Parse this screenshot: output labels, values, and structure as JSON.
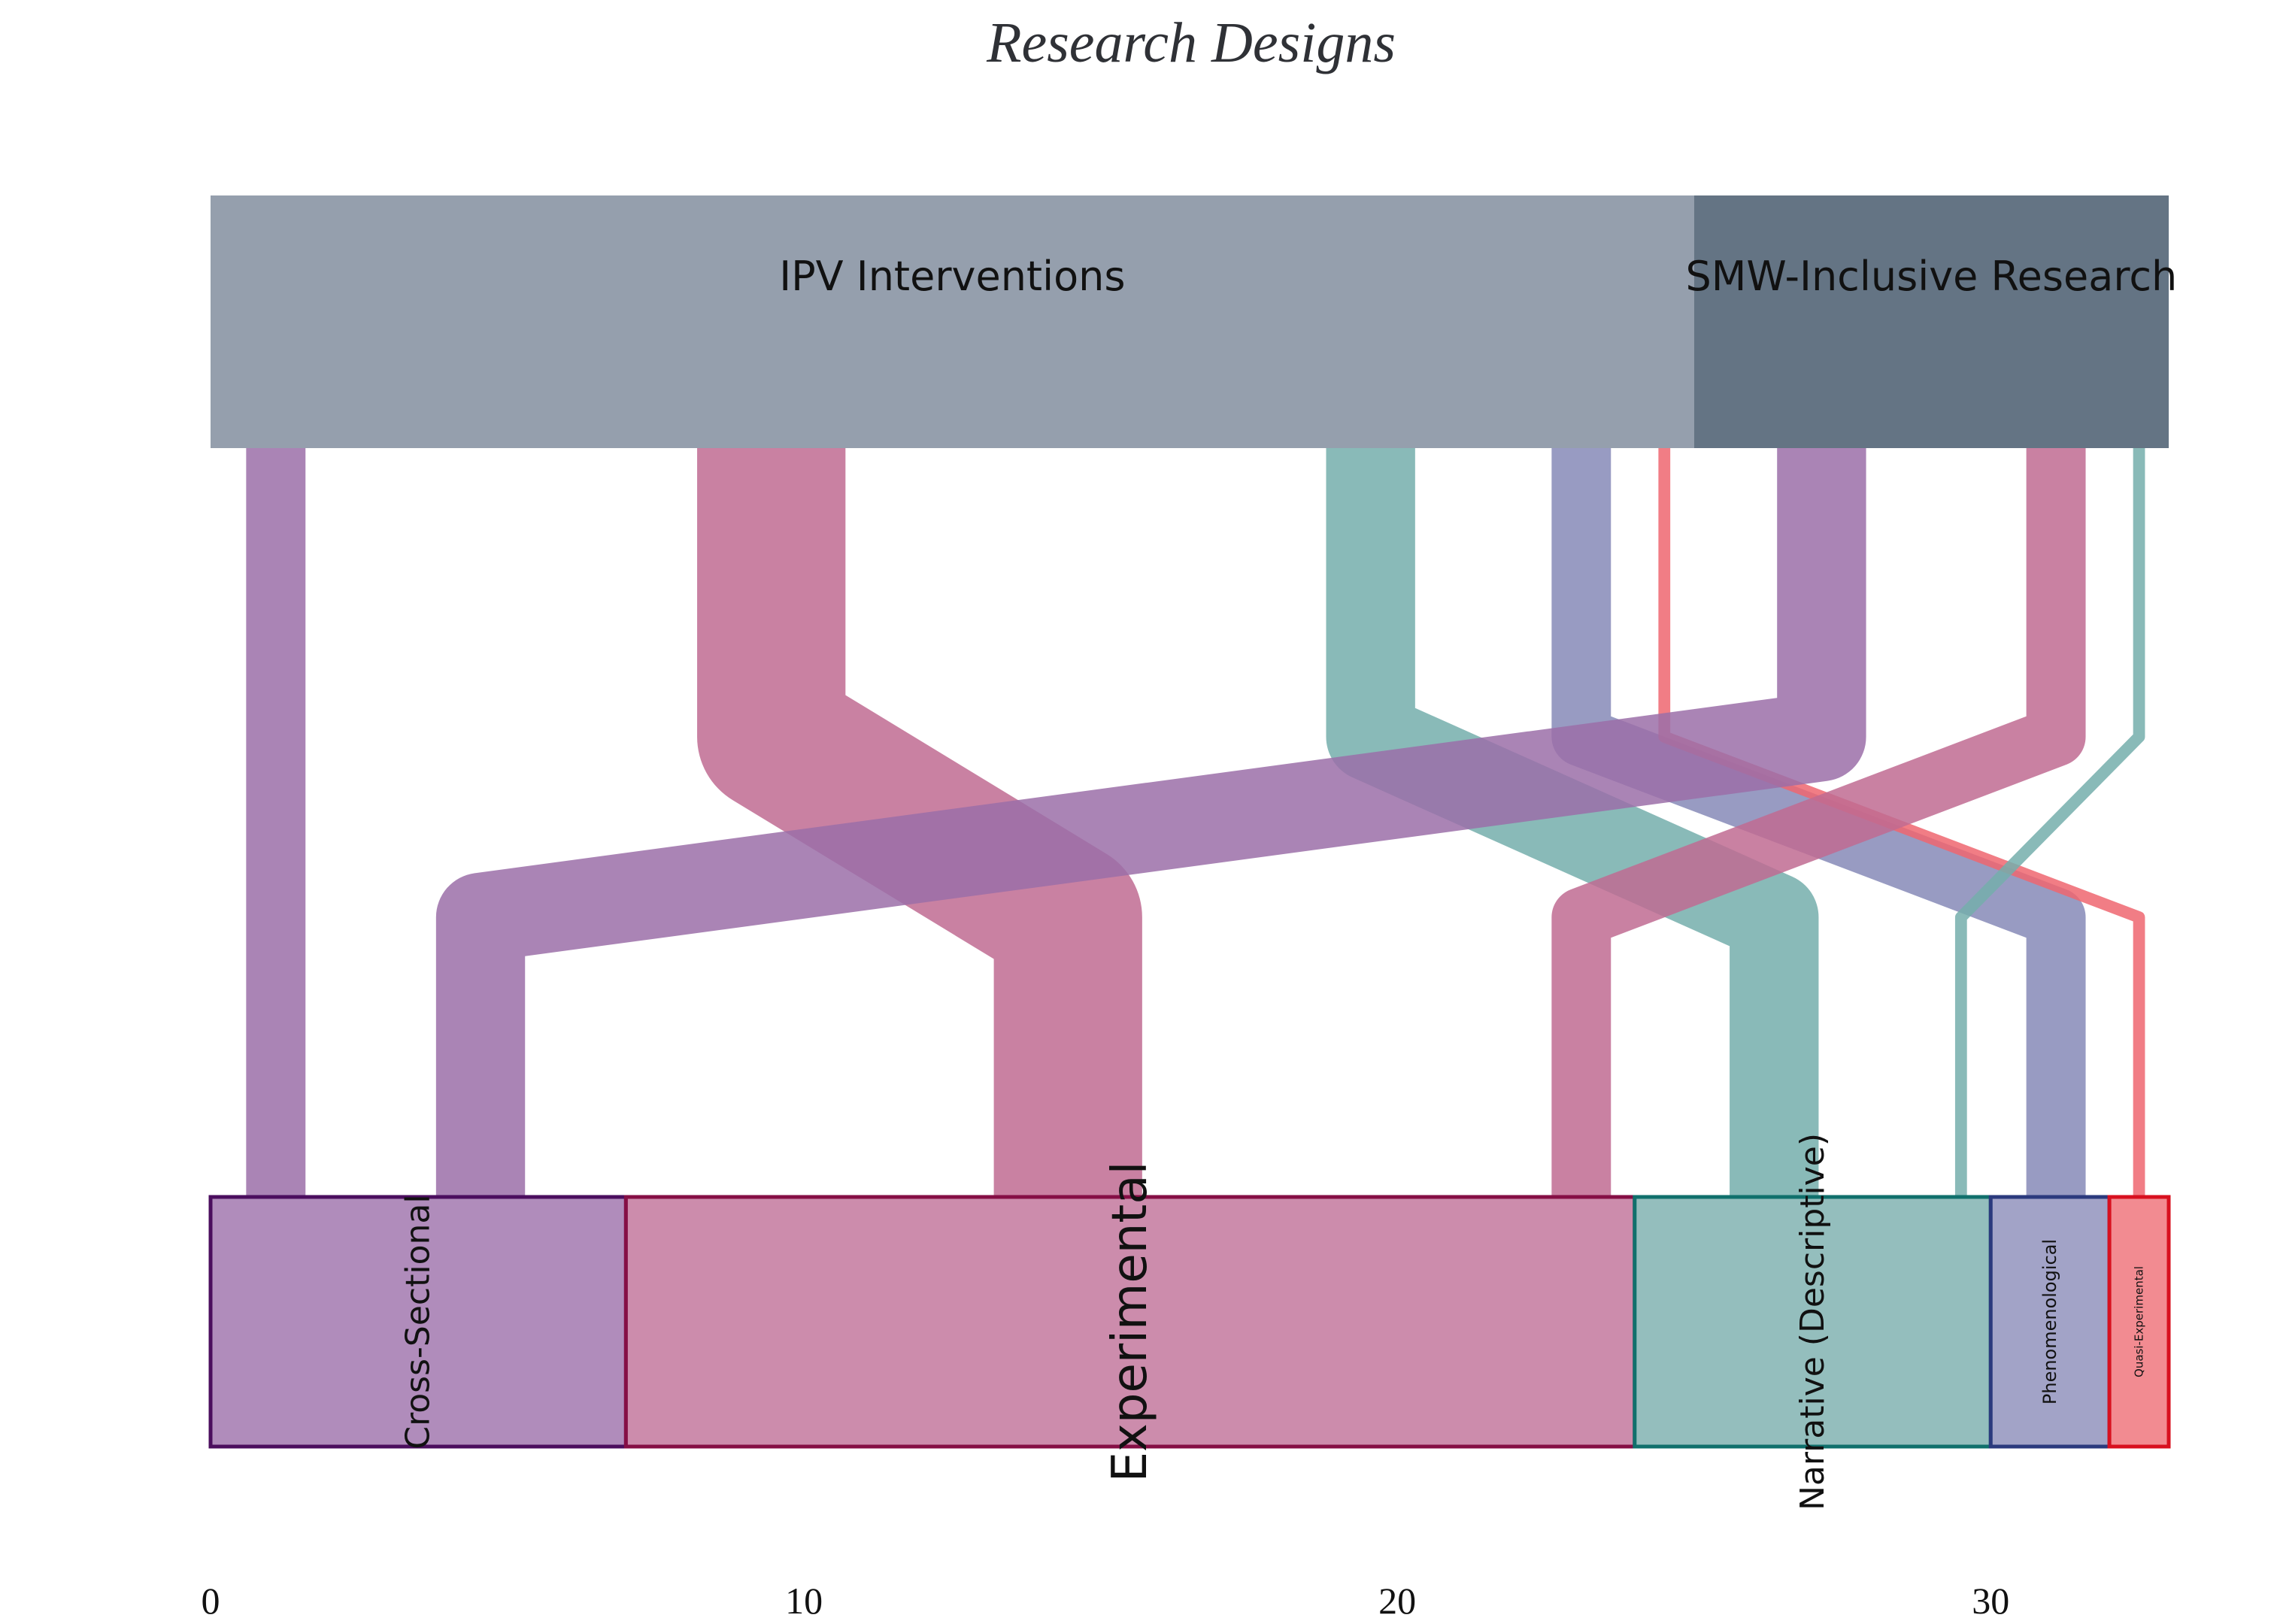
{
  "title": "Research Designs",
  "axis": {
    "min": 0,
    "max": 33,
    "ticks": [
      {
        "value": 0,
        "label": "0"
      },
      {
        "value": 10,
        "label": "10"
      },
      {
        "value": 20,
        "label": "20"
      },
      {
        "value": 30,
        "label": "30"
      }
    ]
  },
  "top_nodes": [
    {
      "label": "IPV Interventions",
      "start": 0,
      "end": 25,
      "color": "#959fad"
    },
    {
      "label": "SMW-Inclusive Research",
      "start": 25,
      "end": 33,
      "color": "#647484"
    }
  ],
  "bottom_nodes": [
    {
      "label": "Cross-Sectional",
      "start": 0,
      "end": 7,
      "fill": "#b08cbb",
      "stroke": "#4b0e5e",
      "font_size": 44
    },
    {
      "label": "Experimental",
      "start": 7,
      "end": 24,
      "fill": "#cc8cac",
      "stroke": "#850f45",
      "font_size": 64
    },
    {
      "label": "Narrative (Descriptive)",
      "start": 24,
      "end": 30,
      "fill": "#94bebd",
      "stroke": "#10706c",
      "font_size": 44
    },
    {
      "label": "Phenomenological",
      "start": 30,
      "end": 32,
      "fill": "#a2a3c7",
      "stroke": "#2b3a7d",
      "font_size": 24
    },
    {
      "label": "Quasi-Experimental",
      "start": 32,
      "end": 33,
      "fill": "#f28b91",
      "stroke": "#d8101f",
      "font_size": 15
    }
  ],
  "flows": [
    {
      "from": "IPV Interventions",
      "to": "Cross-Sectional",
      "value": 1,
      "top_start": 0.6,
      "bottom_start": 0.6,
      "color": "#9b6fa8"
    },
    {
      "from": "IPV Interventions",
      "to": "Experimental",
      "value": 2.5,
      "top_start": 8.2,
      "bottom_start": 13.2,
      "color": "#bf6b92"
    },
    {
      "from": "IPV Interventions",
      "to": "Narrative (Descriptive)",
      "value": 1.5,
      "top_start": 18.8,
      "bottom_start": 25.6,
      "color": "#74aeab"
    },
    {
      "from": "IPV Interventions",
      "to": "Phenomenological",
      "value": 1,
      "top_start": 22.6,
      "bottom_start": 30.6,
      "color": "#8689b7"
    },
    {
      "from": "IPV Interventions",
      "to": "Quasi-Experimental",
      "value": 0.2,
      "top_start": 24.4,
      "bottom_start": 32.4,
      "color": "#ee6670"
    },
    {
      "from": "SMW-Inclusive Research",
      "to": "Cross-Sectional",
      "value": 1.5,
      "top_start": 26.4,
      "bottom_start": 3.8,
      "color": "#9b6fa8"
    },
    {
      "from": "SMW-Inclusive Research",
      "to": "Experimental",
      "value": 1,
      "top_start": 30.6,
      "bottom_start": 22.6,
      "color": "#bf6b92"
    },
    {
      "from": "SMW-Inclusive Research",
      "to": "Narrative (Descriptive)",
      "value": 0.2,
      "top_start": 32.4,
      "bottom_start": 29.4,
      "color": "#74aeab"
    }
  ]
}
